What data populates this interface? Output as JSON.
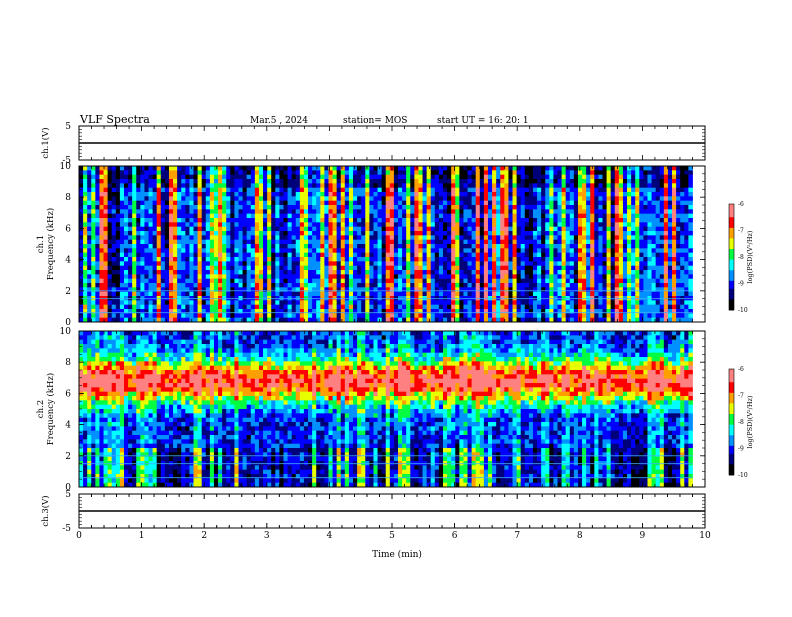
{
  "header": {
    "title": "VLF Spectra",
    "date": "Mar.5 , 2024",
    "station": "station= MOS",
    "start": "start UT = 16: 20: 1"
  },
  "colors": {
    "colormap": [
      "#000000",
      "#00007a",
      "#0000ff",
      "#0090ff",
      "#00ffff",
      "#00ff40",
      "#e8ff00",
      "#ffa000",
      "#ff0000",
      "#ff8080",
      "#ffffff"
    ],
    "line": "#000000"
  },
  "chart_data": [
    {
      "type": "line",
      "panel": "ch1-waveform",
      "ylabel": "ch.1(V)",
      "ylim": [
        -5,
        5
      ],
      "yticks": [
        5,
        -5
      ],
      "x": [
        0,
        10
      ],
      "values": [
        0,
        0
      ]
    },
    {
      "type": "heatmap",
      "panel": "ch1-spectrogram",
      "ylabel": "ch.1\nFrequency (kHz)",
      "ylim": [
        0,
        10
      ],
      "yticks": [
        0,
        2,
        4,
        6,
        8,
        10
      ],
      "xlim": [
        0,
        9.8
      ],
      "colorbar": {
        "label": "log(PSD)(V²/Hz)",
        "range": [
          -10,
          -6
        ],
        "ticks": [
          -6,
          -7,
          -8,
          -9,
          -10
        ]
      }
    },
    {
      "type": "heatmap",
      "panel": "ch2-spectrogram",
      "ylabel": "ch.2\nFrequency (kHz)",
      "ylim": [
        0,
        10
      ],
      "yticks": [
        0,
        2,
        4,
        6,
        8,
        10
      ],
      "xlim": [
        0,
        9.8
      ],
      "colorbar": {
        "label": "log(PSD)(V²/Hz)",
        "range": [
          -10,
          -6
        ],
        "ticks": [
          -6,
          -7,
          -8,
          -9,
          -10
        ]
      }
    },
    {
      "type": "line",
      "panel": "ch3-waveform",
      "ylabel": "ch.3(V)",
      "ylim": [
        -5,
        5
      ],
      "yticks": [
        5,
        -5
      ],
      "x": [
        0,
        10
      ],
      "values": [
        0,
        0
      ]
    }
  ],
  "xaxis": {
    "label": "Time (min)",
    "range": [
      0,
      10
    ],
    "ticks": [
      0,
      1,
      2,
      3,
      4,
      5,
      6,
      7,
      8,
      9,
      10
    ]
  }
}
